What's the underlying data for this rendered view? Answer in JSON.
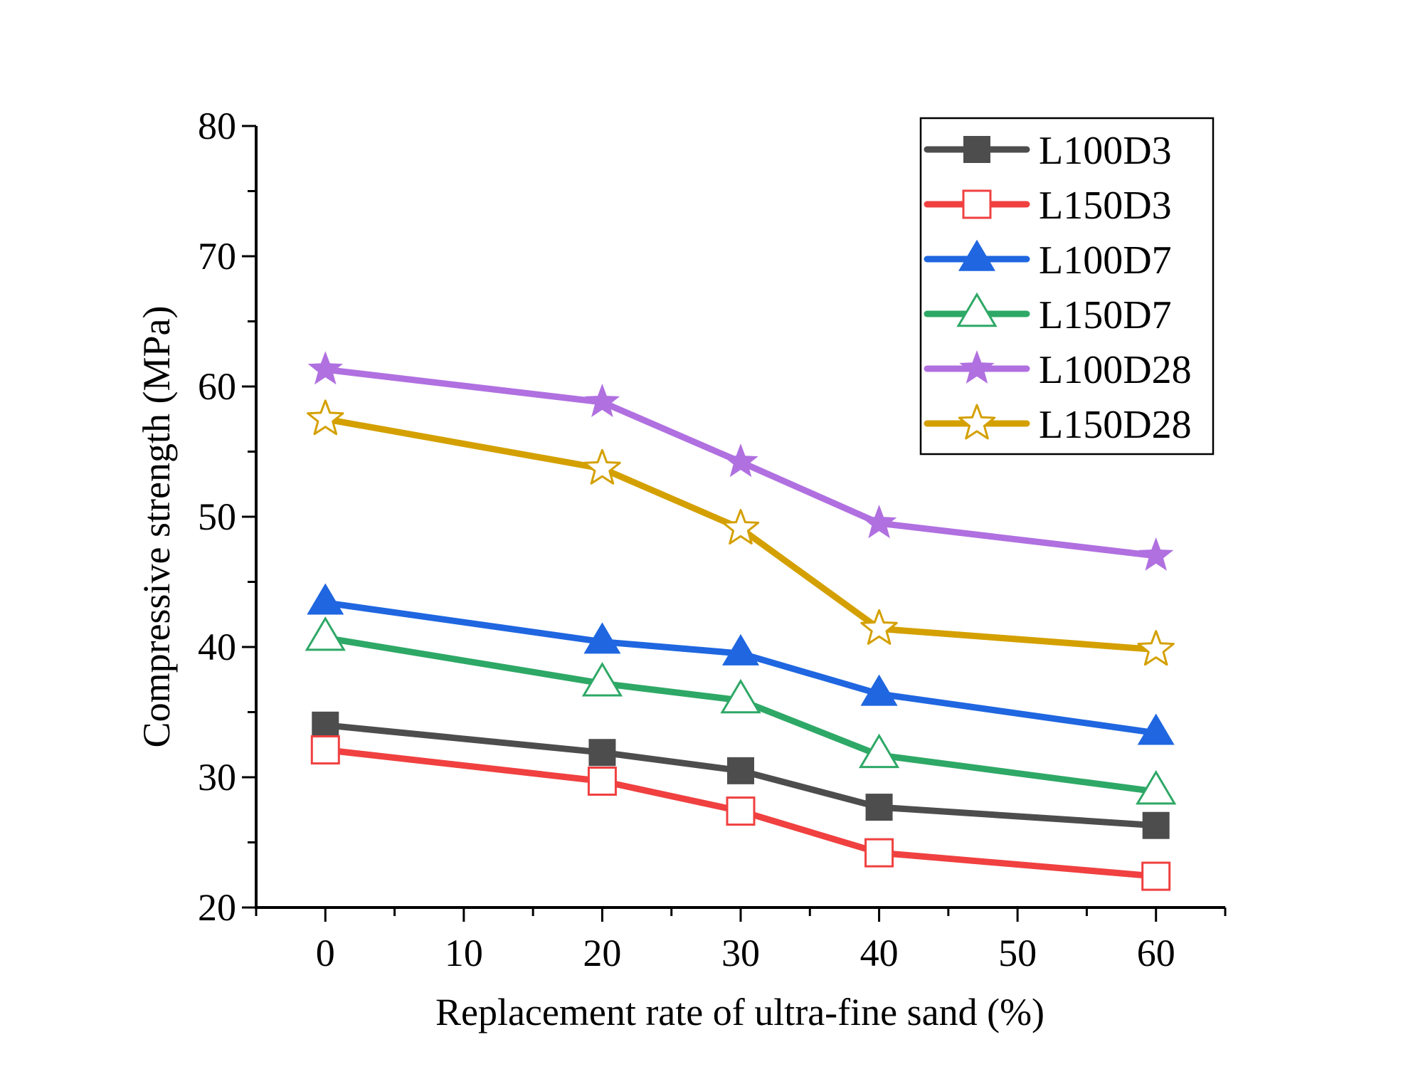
{
  "chart_data": {
    "type": "line",
    "title": "",
    "xlabel": "Replacement rate of ultra-fine sand (%)",
    "ylabel": "Compressive strength (MPa)",
    "xlim": [
      -5,
      65
    ],
    "ylim": [
      20,
      80
    ],
    "xticks": [
      0,
      10,
      20,
      30,
      40,
      50,
      60
    ],
    "yticks": [
      20,
      30,
      40,
      50,
      60,
      70,
      80
    ],
    "grid": false,
    "legend_position": "top-right",
    "x": [
      0,
      20,
      30,
      40,
      60
    ],
    "series": [
      {
        "name": "L100D3",
        "color": "#4d4d4d",
        "marker": "square",
        "filled": true,
        "values": [
          34.0,
          31.9,
          30.5,
          27.7,
          26.3
        ]
      },
      {
        "name": "L150D3",
        "color": "#f04040",
        "marker": "square",
        "filled": false,
        "values": [
          32.1,
          29.7,
          27.4,
          24.2,
          22.4
        ]
      },
      {
        "name": "L100D7",
        "color": "#1f66e0",
        "marker": "triangle",
        "filled": true,
        "values": [
          43.4,
          40.4,
          39.5,
          36.4,
          33.4
        ]
      },
      {
        "name": "L150D7",
        "color": "#2ea866",
        "marker": "triangle",
        "filled": false,
        "values": [
          40.7,
          37.2,
          35.9,
          31.7,
          28.9
        ]
      },
      {
        "name": "L100D28",
        "color": "#b070e0",
        "marker": "star",
        "filled": true,
        "values": [
          61.3,
          58.8,
          54.2,
          49.5,
          47.0
        ]
      },
      {
        "name": "L150D28",
        "color": "#d4a000",
        "marker": "star",
        "filled": false,
        "values": [
          57.5,
          53.7,
          49.1,
          41.4,
          39.8
        ]
      }
    ]
  }
}
